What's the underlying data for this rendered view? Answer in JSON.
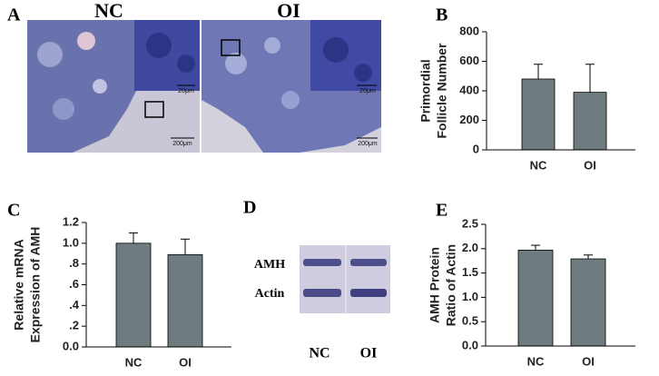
{
  "panels": {
    "A": {
      "letter": "A",
      "images": [
        {
          "label": "NC",
          "scale_bars": [
            "20μm",
            "200μm"
          ]
        },
        {
          "label": "OI",
          "scale_bars": [
            "20μm",
            "200μm"
          ]
        }
      ]
    },
    "D": {
      "letter": "D",
      "rows": [
        "AMH",
        "Actin"
      ],
      "lanes": [
        "NC",
        "OI"
      ]
    }
  },
  "chart_data": [
    {
      "type": "bar",
      "panel_label": "B",
      "ylabel": [
        "Primordial",
        "Follicle Number"
      ],
      "categories": [
        "NC",
        "OI"
      ],
      "values": [
        480,
        390
      ],
      "errors": [
        100,
        190
      ],
      "color": "#6e7c80",
      "ylim": [
        0,
        800
      ],
      "yticks": [
        0,
        200,
        400,
        600,
        800
      ]
    },
    {
      "type": "bar",
      "panel_label": "C",
      "ylabel": [
        "Relative mRNA",
        "Expression of AMH"
      ],
      "categories": [
        "NC",
        "OI"
      ],
      "values": [
        1.0,
        0.89
      ],
      "errors": [
        0.1,
        0.15
      ],
      "color": "#6e7c80",
      "ylim": [
        0,
        1.2
      ],
      "yticks": [
        {
          "value": 0,
          "label": "0.0"
        },
        {
          "value": 0.2,
          "label": ".2"
        },
        {
          "value": 0.4,
          "label": ".4"
        },
        {
          "value": 0.6,
          "label": ".6"
        },
        {
          "value": 0.8,
          "label": ".8"
        },
        {
          "value": 1,
          "label": "1.0"
        },
        1.2
      ]
    },
    {
      "type": "bar",
      "panel_label": "E",
      "ylabel": [
        "AMH Protein",
        "Ratio of Actin"
      ],
      "categories": [
        "NC",
        "OI"
      ],
      "values": [
        1.97,
        1.79
      ],
      "errors": [
        0.1,
        0.08
      ],
      "color": "#6e7c80",
      "ylim": [
        0,
        2.5
      ],
      "yticks": [
        {
          "value": 0,
          "label": "0.0"
        },
        0.5,
        {
          "value": 1,
          "label": "1.0"
        },
        1.5,
        {
          "value": 2,
          "label": "2.0"
        },
        2.5
      ]
    }
  ]
}
